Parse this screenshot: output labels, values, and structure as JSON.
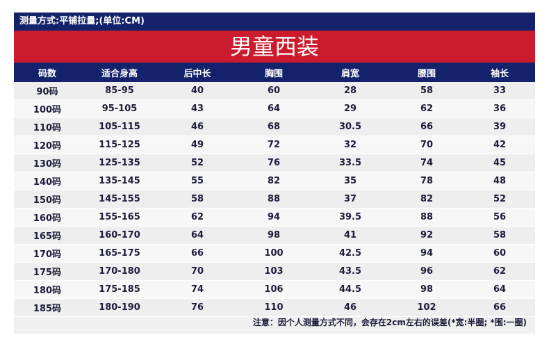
{
  "header": {
    "measure_note": "测量方式:平铺拉量;(单位:CM)",
    "title": "男童西装"
  },
  "table": {
    "columns": [
      "码数",
      "适合身高",
      "后中长",
      "胸围",
      "肩宽",
      "腰围",
      "袖长"
    ],
    "rows": [
      [
        "90码",
        "85-95",
        "40",
        "60",
        "28",
        "58",
        "33"
      ],
      [
        "100码",
        "95-105",
        "43",
        "64",
        "29",
        "62",
        "36"
      ],
      [
        "110码",
        "105-115",
        "46",
        "68",
        "30.5",
        "66",
        "39"
      ],
      [
        "120码",
        "115-125",
        "49",
        "72",
        "32",
        "70",
        "42"
      ],
      [
        "130码",
        "125-135",
        "52",
        "76",
        "33.5",
        "74",
        "45"
      ],
      [
        "140码",
        "135-145",
        "55",
        "82",
        "35",
        "78",
        "48"
      ],
      [
        "150码",
        "145-155",
        "58",
        "88",
        "37",
        "82",
        "52"
      ],
      [
        "160码",
        "155-165",
        "62",
        "94",
        "39.5",
        "88",
        "56"
      ],
      [
        "165码",
        "160-170",
        "64",
        "98",
        "41",
        "92",
        "58"
      ],
      [
        "170码",
        "165-175",
        "66",
        "100",
        "42.5",
        "94",
        "60"
      ],
      [
        "175码",
        "170-180",
        "70",
        "103",
        "43.5",
        "96",
        "62"
      ],
      [
        "180码",
        "175-185",
        "74",
        "106",
        "44.5",
        "98",
        "64"
      ],
      [
        "185码",
        "180-190",
        "76",
        "110",
        "46",
        "102",
        "66"
      ]
    ]
  },
  "footer": {
    "note": "注意：因个人测量方式不同，会存在2cm左右的误差(*宽:半圈; *围:一圈)"
  },
  "colors": {
    "navy": "#13226b",
    "red": "#cc1b2c",
    "row_light": "#f7f7f7",
    "row_dark": "#eeeeee"
  }
}
